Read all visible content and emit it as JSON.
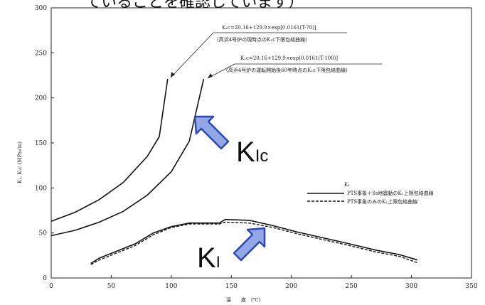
{
  "chart_data": {
    "type": "line",
    "header_text": "ていることを確認しています）",
    "xlabel": "温　　度　(℃)",
    "ylabel": "K₁, K₁c (MPa√m)",
    "xlim": [
      0,
      350
    ],
    "ylim": [
      0,
      300
    ],
    "x_ticks": [
      0,
      50,
      100,
      150,
      200,
      250,
      300,
      350
    ],
    "y_ticks": [
      0,
      50,
      100,
      150,
      200,
      250,
      300
    ],
    "grid": false,
    "series": [
      {
        "name": "K₁c=20.16+129.9×exp[0.0161(T-70)]",
        "style": "solid",
        "points": [
          [
            0,
            63
          ],
          [
            20,
            73
          ],
          [
            40,
            87
          ],
          [
            60,
            106
          ],
          [
            80,
            135
          ],
          [
            90,
            157
          ],
          [
            97,
            221
          ]
        ]
      },
      {
        "name": "K₁c=20.16+129.9×exp[0.0161(T-100)]",
        "style": "solid",
        "points": [
          [
            0,
            47
          ],
          [
            20,
            53
          ],
          [
            40,
            62
          ],
          [
            60,
            74
          ],
          [
            80,
            92
          ],
          [
            100,
            118
          ],
          [
            115,
            152
          ],
          [
            127,
            221
          ]
        ]
      },
      {
        "name": "PTS事象＋Ss地震動のK₁上限包絡曲線",
        "style": "solid",
        "points": [
          [
            33,
            16
          ],
          [
            40,
            22
          ],
          [
            55,
            30
          ],
          [
            70,
            38
          ],
          [
            85,
            50
          ],
          [
            100,
            57
          ],
          [
            115,
            61
          ],
          [
            140,
            61
          ],
          [
            145,
            65
          ],
          [
            165,
            64
          ],
          [
            185,
            58
          ],
          [
            205,
            51
          ],
          [
            225,
            45
          ],
          [
            245,
            39
          ],
          [
            270,
            31
          ],
          [
            290,
            26
          ],
          [
            305,
            20
          ]
        ]
      },
      {
        "name": "PTS事象のみのK₁上限包絡曲線",
        "style": "dashed",
        "points": [
          [
            33,
            15
          ],
          [
            40,
            20
          ],
          [
            55,
            28
          ],
          [
            70,
            36
          ],
          [
            85,
            48
          ],
          [
            100,
            56
          ],
          [
            115,
            60
          ],
          [
            140,
            60
          ],
          [
            145,
            62
          ],
          [
            165,
            61
          ],
          [
            185,
            56
          ],
          [
            205,
            49
          ],
          [
            225,
            43
          ],
          [
            245,
            37
          ],
          [
            270,
            29
          ],
          [
            290,
            24
          ],
          [
            305,
            17
          ]
        ]
      }
    ],
    "annotations": [
      {
        "line1": "K₁c=20.16+129.9×exp[0.0161(T-70)]",
        "line2": "(高浜4号炉の現時点のK₁c下限包絡曲線)"
      },
      {
        "line1": "K₁c=20.16+129.9×exp[0.0161(T-100)]",
        "line2": "(高浜4号炉の運転開始後60年時点のK₁c下限包絡曲線)"
      }
    ],
    "legend": {
      "position": "right",
      "header": "K₁",
      "entries": [
        "PTS事象＋Ss地震動のK₁上限包絡曲線",
        "PTS事象のみのK₁上限包絡曲線"
      ]
    },
    "big_labels": {
      "kic": "K",
      "kic_sub": "Ic",
      "ki": "K",
      "ki_sub": "I"
    },
    "colors": {
      "line": "#111111",
      "arrow_fill": "#93a6e6",
      "arrow_stroke": "#2e47b5"
    }
  }
}
